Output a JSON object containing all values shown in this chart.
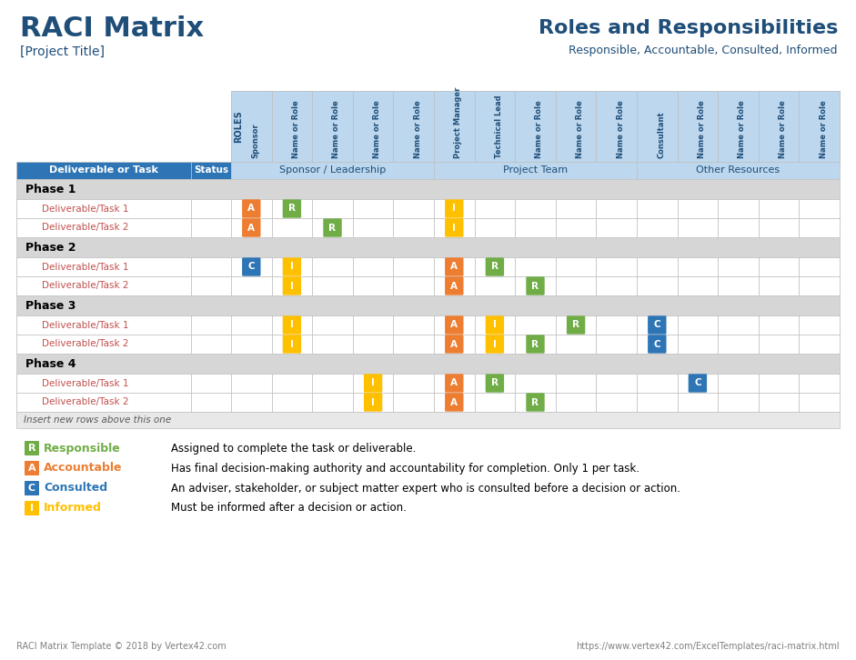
{
  "title_left": "RACI Matrix",
  "subtitle_left": "[Project Title]",
  "title_right": "Roles and Responsibilities",
  "subtitle_right": "Responsible, Accountable, Consulted, Informed",
  "header_blue": "#2E75B6",
  "header_light_blue": "#BDD7EE",
  "phase_bg": "#D6D6D6",
  "border_color": "#BFBFBF",
  "title_color": "#1F4E79",
  "task_label_color": "#C0504D",
  "color_R": "#70AD47",
  "color_A": "#ED7D31",
  "color_C": "#2E75B6",
  "color_I": "#FFC000",
  "col_headers": [
    "Sponsor",
    "Name or Role",
    "Name or Role",
    "Name or Role",
    "Name or Role",
    "Project Manager",
    "Technical Lead",
    "Name or Role",
    "Name or Role",
    "Name or Role",
    "Consultant",
    "Name or Role",
    "Name or Role",
    "Name or Role",
    "Name or Role"
  ],
  "rows": [
    {
      "type": "phase",
      "label": "Phase 1"
    },
    {
      "type": "task",
      "label": "Deliverable/Task 1",
      "cells": {
        "0": "A",
        "1": "R",
        "5": "I"
      }
    },
    {
      "type": "task",
      "label": "Deliverable/Task 2",
      "cells": {
        "0": "A",
        "2": "R",
        "5": "I"
      }
    },
    {
      "type": "phase",
      "label": "Phase 2"
    },
    {
      "type": "task",
      "label": "Deliverable/Task 1",
      "cells": {
        "0": "C",
        "1": "I",
        "5": "A",
        "6": "R"
      }
    },
    {
      "type": "task",
      "label": "Deliverable/Task 2",
      "cells": {
        "1": "I",
        "5": "A",
        "7": "R"
      }
    },
    {
      "type": "phase",
      "label": "Phase 3"
    },
    {
      "type": "task",
      "label": "Deliverable/Task 1",
      "cells": {
        "1": "I",
        "5": "A",
        "6": "I",
        "8": "R",
        "10": "C"
      }
    },
    {
      "type": "task",
      "label": "Deliverable/Task 2",
      "cells": {
        "1": "I",
        "5": "A",
        "6": "I",
        "7": "R",
        "10": "C"
      }
    },
    {
      "type": "phase",
      "label": "Phase 4"
    },
    {
      "type": "task",
      "label": "Deliverable/Task 1",
      "cells": {
        "3": "I",
        "5": "A",
        "6": "R",
        "11": "C"
      }
    },
    {
      "type": "task",
      "label": "Deliverable/Task 2",
      "cells": {
        "3": "I",
        "5": "A",
        "7": "R"
      }
    }
  ],
  "footer_left": "RACI Matrix Template © 2018 by Vertex42.com",
  "footer_right": "https://www.vertex42.com/ExcelTemplates/raci-matrix.html",
  "legend": [
    {
      "letter": "R",
      "label": "Responsible",
      "color": "#70AD47",
      "desc": "Assigned to complete the task or deliverable."
    },
    {
      "letter": "A",
      "label": "Accountable",
      "color": "#ED7D31",
      "desc": "Has final decision-making authority and accountability for completion. Only 1 per task."
    },
    {
      "letter": "C",
      "label": "Consulted",
      "color": "#2E75B6",
      "desc": "An adviser, stakeholder, or subject matter expert who is consulted before a decision or action."
    },
    {
      "letter": "I",
      "label": "Informed",
      "color": "#FFC000",
      "desc": "Must be informed after a decision or action."
    }
  ]
}
